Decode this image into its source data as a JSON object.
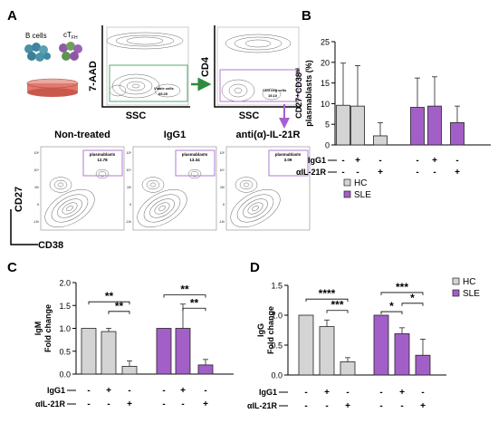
{
  "panels": {
    "A": {
      "label": "A",
      "cell_labels": {
        "b_cells": "B cells",
        "ctfh_main": "cT",
        "ctfh_sub": "FH"
      },
      "flow1": {
        "y_axis": "7-AAD",
        "x_axis": "SSC",
        "gate_label": "Viable cells",
        "gate_value": "65.29"
      },
      "flow2": {
        "y_axis": "CD4",
        "x_axis": "SSC",
        "gate_label": "CD4 neg cells",
        "gate_value": "15.10"
      },
      "conditions": [
        {
          "title": "Non-treated",
          "gate_label": "plasmablasts",
          "gate_value": "12.78"
        },
        {
          "title": "IgG1",
          "gate_label": "plasmablasts",
          "gate_value": "13.34"
        },
        {
          "title": "anti(α)-IL-21R",
          "gate_label": "plasmablasts",
          "gate_value": "3.09"
        }
      ],
      "bottom_axes": {
        "y": "CD27",
        "x": "CD38"
      },
      "tick_text": [
        "10⁵",
        "10⁴",
        "10³",
        "0",
        "-10³"
      ]
    },
    "B": {
      "label": "B"
    },
    "C": {
      "label": "C"
    },
    "D": {
      "label": "D"
    }
  },
  "legend_shared": {
    "hc": "HC",
    "sle": "SLE"
  },
  "colors": {
    "hc": "#d4d4d4",
    "sle": "#a35fc8",
    "gate_green": "#5aa874",
    "gate_purple": "#b37ad6",
    "arrow_green": "#2e8b3d",
    "arrow_purple": "#a55fd0"
  },
  "condition_table": {
    "row1_label": "IgG1",
    "row2_label": "αIL-21R",
    "row1": [
      "-",
      "+",
      "-",
      "-",
      "+",
      "-"
    ],
    "row2": [
      "-",
      "-",
      "+",
      "-",
      "-",
      "+"
    ]
  },
  "chart_data": [
    {
      "panel": "B",
      "type": "bar",
      "ylabel_line1": "CD27⁺CD38ʰⁱ",
      "ylabel_line2": "plasmablasts (%)",
      "ylim": [
        0,
        25
      ],
      "yticks": [
        0,
        5,
        10,
        15,
        20,
        25
      ],
      "series": [
        {
          "name": "HC",
          "values": [
            9.6,
            9.4,
            2.2
          ],
          "err": [
            10.2,
            9.8,
            3.2
          ]
        },
        {
          "name": "SLE",
          "values": [
            9.1,
            9.4,
            5.4
          ],
          "err": [
            7.1,
            7.1,
            4.0
          ]
        }
      ],
      "legend": [
        "HC",
        "SLE"
      ],
      "significance": []
    },
    {
      "panel": "C",
      "type": "bar",
      "ylabel_line1": "IgM",
      "ylabel_line2": "Fold change",
      "ylim": [
        0,
        2.0
      ],
      "yticks": [
        "0.0",
        "0.5",
        "1.0",
        "1.5",
        "2.0"
      ],
      "series": [
        {
          "name": "HC",
          "values": [
            1.0,
            0.93,
            0.17
          ],
          "err": [
            0.0,
            0.07,
            0.12
          ]
        },
        {
          "name": "SLE",
          "values": [
            1.0,
            1.0,
            0.2
          ],
          "err": [
            0.0,
            0.53,
            0.12
          ]
        }
      ],
      "significance": [
        {
          "text": "**",
          "from": 0,
          "to": 2,
          "level": 1.58
        },
        {
          "text": "**",
          "from": 1,
          "to": 2,
          "level": 1.37
        },
        {
          "text": "**",
          "from": 3,
          "to": 5,
          "level": 1.73
        },
        {
          "text": "**",
          "from": 4,
          "to": 5,
          "level": 1.44
        }
      ]
    },
    {
      "panel": "D",
      "type": "bar",
      "ylabel_line1": "IgG",
      "ylabel_line2": "Fold change",
      "ylim": [
        0,
        1.5
      ],
      "yticks": [
        "0.0",
        "0.5",
        "1.0",
        "1.5"
      ],
      "series": [
        {
          "name": "HC",
          "values": [
            1.0,
            0.81,
            0.22
          ],
          "err": [
            0.0,
            0.11,
            0.07
          ]
        },
        {
          "name": "SLE",
          "values": [
            1.0,
            0.69,
            0.33
          ],
          "err": [
            0.0,
            0.1,
            0.27
          ]
        }
      ],
      "legend": [
        "HC",
        "SLE"
      ],
      "significance": [
        {
          "text": "****",
          "from": 0,
          "to": 2,
          "level": 1.27
        },
        {
          "text": "***",
          "from": 1,
          "to": 2,
          "level": 1.08
        },
        {
          "text": "***",
          "from": 3,
          "to": 5,
          "level": 1.38
        },
        {
          "text": "*",
          "from": 3,
          "to": 4,
          "level": 1.06
        },
        {
          "text": "*",
          "from": 4,
          "to": 5,
          "level": 1.2
        }
      ]
    }
  ]
}
